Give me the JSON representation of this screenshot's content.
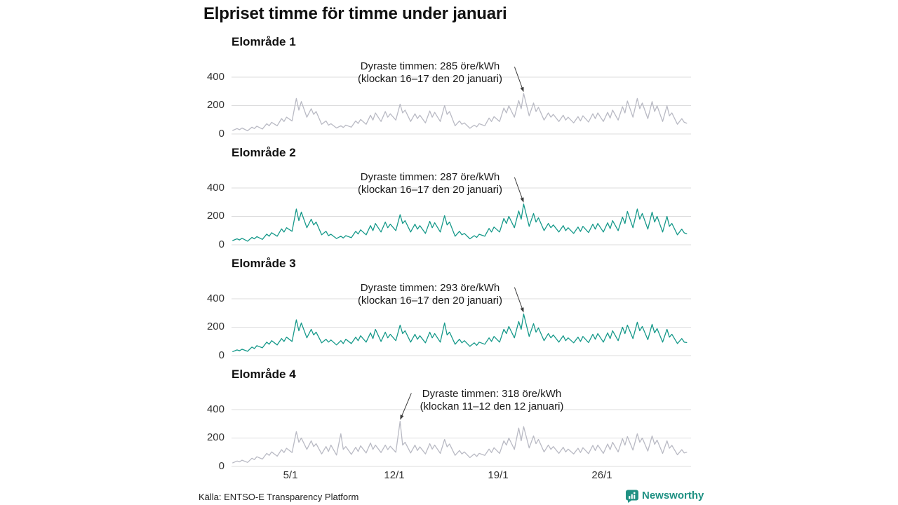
{
  "title": "Elpriset timme för timme under januari",
  "source": "Källa: ENTSO-E Transparency Platform",
  "brand": {
    "name": "Newsworthy",
    "color": "#1f9183"
  },
  "colors": {
    "gray_line": "#b9bac4",
    "teal_line": "#16998a",
    "gridline": "#dcdcdd",
    "arrow": "#3c3c3c",
    "axis_text": "#333333"
  },
  "axis": {
    "y_ticks": [
      "400",
      "200",
      "0"
    ],
    "y_tick_values": [
      400,
      200,
      0
    ],
    "ylim": [
      0,
      450
    ],
    "x_ticks": [
      {
        "label": "5/1",
        "day": 5
      },
      {
        "label": "12/1",
        "day": 12
      },
      {
        "label": "19/1",
        "day": 19
      },
      {
        "label": "26/1",
        "day": 26
      }
    ],
    "days": 31,
    "sample_hours": [
      2,
      9,
      13,
      17
    ],
    "unit": "öre/kWh",
    "grid": true
  },
  "chart_data": [
    {
      "type": "line",
      "title": "Elområde 1",
      "unit": "öre/kWh",
      "ylim": [
        0,
        450
      ],
      "x_range": [
        "1 januari",
        "31 januari"
      ],
      "color": "#b9bac4",
      "annotation": {
        "line1": "Dyraste timmen: 285 öre/kWh",
        "line2": "(klockan 16–17 den 20 januari)",
        "peak_value": 285,
        "peak_index": 79,
        "arrow_from": [
          -13,
          -36
        ]
      },
      "values": [
        25,
        38,
        30,
        42,
        22,
        48,
        38,
        55,
        35,
        72,
        58,
        82,
        58,
        108,
        88,
        118,
        92,
        250,
        168,
        228,
        118,
        178,
        138,
        158,
        68,
        92,
        62,
        72,
        42,
        58,
        46,
        62,
        48,
        92,
        74,
        102,
        68,
        132,
        98,
        148,
        88,
        158,
        118,
        142,
        98,
        210,
        148,
        168,
        88,
        142,
        108,
        132,
        78,
        162,
        118,
        152,
        88,
        200,
        138,
        158,
        58,
        92,
        68,
        78,
        40,
        62,
        50,
        72,
        58,
        112,
        88,
        122,
        88,
        182,
        148,
        198,
        118,
        235,
        178,
        285,
        128,
        218,
        158,
        188,
        98,
        148,
        118,
        138,
        88,
        132,
        98,
        118,
        78,
        122,
        92,
        128,
        84,
        142,
        108,
        148,
        88,
        152,
        112,
        168,
        98,
        192,
        148,
        232,
        118,
        250,
        178,
        218,
        108,
        228,
        158,
        198,
        88,
        198,
        128,
        148,
        68,
        108,
        82,
        76
      ]
    },
    {
      "type": "line",
      "title": "Elområde 2",
      "unit": "öre/kWh",
      "ylim": [
        0,
        450
      ],
      "x_range": [
        "1 januari",
        "31 januari"
      ],
      "color": "#16998a",
      "annotation": {
        "line1": "Dyraste timmen: 287 öre/kWh",
        "line2": "(klockan 16–17 den 20 januari)",
        "peak_value": 287,
        "peak_index": 79,
        "arrow_from": [
          -13,
          -36
        ]
      },
      "values": [
        30,
        42,
        34,
        46,
        25,
        52,
        42,
        58,
        38,
        75,
        60,
        85,
        60,
        112,
        90,
        120,
        95,
        252,
        170,
        230,
        120,
        180,
        140,
        160,
        70,
        95,
        64,
        74,
        44,
        60,
        48,
        64,
        50,
        95,
        76,
        105,
        70,
        135,
        100,
        150,
        90,
        160,
        120,
        145,
        100,
        212,
        150,
        170,
        90,
        145,
        110,
        135,
        80,
        165,
        120,
        155,
        90,
        205,
        140,
        160,
        60,
        95,
        70,
        80,
        42,
        64,
        52,
        74,
        60,
        115,
        90,
        125,
        90,
        185,
        150,
        200,
        120,
        238,
        180,
        287,
        130,
        220,
        160,
        190,
        100,
        150,
        120,
        140,
        90,
        135,
        100,
        120,
        80,
        125,
        94,
        130,
        86,
        145,
        110,
        150,
        90,
        155,
        114,
        170,
        100,
        195,
        150,
        235,
        120,
        252,
        180,
        220,
        110,
        230,
        160,
        200,
        90,
        200,
        130,
        150,
        70,
        110,
        84,
        78
      ]
    },
    {
      "type": "line",
      "title": "Elområde 3",
      "unit": "öre/kWh",
      "ylim": [
        0,
        450
      ],
      "x_range": [
        "1 januari",
        "31 januari"
      ],
      "color": "#16998a",
      "annotation": {
        "line1": "Dyraste timmen: 293 öre/kWh",
        "line2": "(klockan 16–17 den 20 januari)",
        "peak_value": 293,
        "peak_index": 79,
        "arrow_from": [
          -13,
          -36
        ]
      },
      "values": [
        28,
        40,
        34,
        45,
        30,
        60,
        50,
        70,
        55,
        95,
        80,
        105,
        75,
        120,
        100,
        130,
        100,
        252,
        175,
        230,
        125,
        185,
        145,
        165,
        90,
        115,
        95,
        110,
        75,
        105,
        85,
        115,
        85,
        130,
        105,
        140,
        95,
        160,
        120,
        185,
        100,
        165,
        125,
        150,
        105,
        215,
        155,
        175,
        95,
        150,
        115,
        140,
        90,
        165,
        125,
        155,
        95,
        230,
        145,
        165,
        80,
        115,
        90,
        105,
        65,
        90,
        72,
        95,
        80,
        125,
        100,
        135,
        95,
        185,
        155,
        205,
        125,
        240,
        185,
        293,
        135,
        225,
        165,
        195,
        105,
        155,
        125,
        145,
        95,
        140,
        105,
        125,
        90,
        130,
        100,
        135,
        92,
        150,
        115,
        155,
        95,
        160,
        120,
        175,
        105,
        200,
        155,
        215,
        120,
        235,
        175,
        205,
        112,
        220,
        160,
        190,
        95,
        185,
        130,
        150,
        85,
        120,
        95,
        92
      ]
    },
    {
      "type": "line",
      "title": "Elområde 4",
      "unit": "öre/kWh",
      "ylim": [
        0,
        450
      ],
      "x_range": [
        "1 januari",
        "31 januari"
      ],
      "color": "#b9bac4",
      "annotation": {
        "line1": "Dyraste timmen: 318 öre/kWh",
        "line2": "(klockan 11–12 den 12 januari)",
        "peak_value": 318,
        "peak_index": 45,
        "arrow_from": [
          16,
          -38
        ]
      },
      "values": [
        25,
        38,
        32,
        44,
        28,
        58,
        48,
        68,
        52,
        92,
        78,
        102,
        72,
        118,
        98,
        128,
        98,
        245,
        170,
        200,
        120,
        180,
        140,
        160,
        88,
        140,
        105,
        150,
        80,
        230,
        120,
        140,
        85,
        135,
        105,
        145,
        95,
        165,
        120,
        150,
        98,
        150,
        118,
        142,
        100,
        318,
        150,
        170,
        95,
        150,
        112,
        138,
        88,
        160,
        122,
        150,
        92,
        190,
        138,
        158,
        78,
        112,
        88,
        102,
        62,
        88,
        70,
        92,
        78,
        122,
        98,
        132,
        92,
        180,
        150,
        200,
        120,
        270,
        180,
        280,
        130,
        215,
        160,
        190,
        102,
        150,
        120,
        140,
        92,
        135,
        102,
        122,
        88,
        128,
        98,
        132,
        90,
        148,
        112,
        150,
        92,
        158,
        118,
        170,
        102,
        195,
        150,
        210,
        115,
        230,
        170,
        200,
        108,
        215,
        155,
        185,
        92,
        180,
        128,
        148,
        82,
        118,
        95,
        100
      ]
    }
  ]
}
